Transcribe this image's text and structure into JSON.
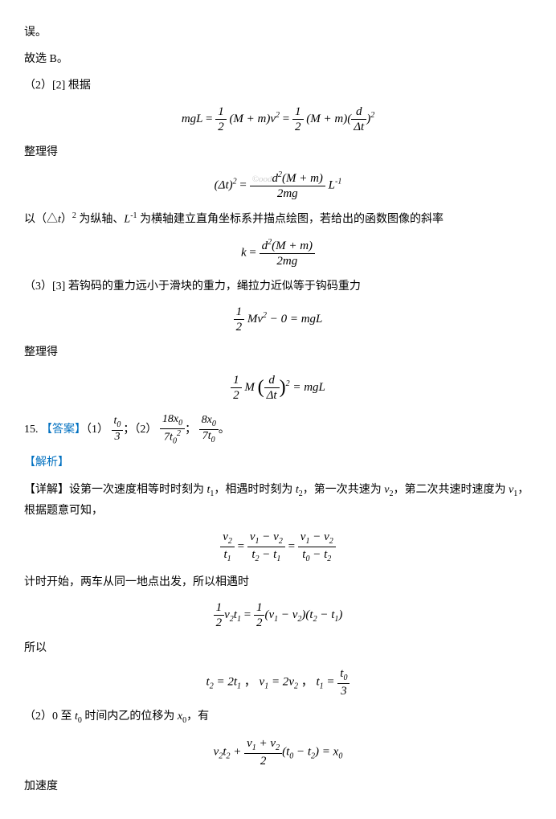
{
  "p1": "误。",
  "p2": "故选 B。",
  "p3": "（2）[2] 根据",
  "p4": "整理得",
  "p5_prefix": "以（△",
  "p5_var": "t",
  "p5_mid1": "）",
  "p5_sup": "2",
  "p5_mid2": " 为纵轴、",
  "p5_var2": "L",
  "p5_sup2": "-1",
  "p5_suffix": " 为横轴建立直角坐标系并描点绘图，若给出的函数图像的斜率",
  "p6": "（3）[3] 若钩码的重力远小于滑块的重力，绳拉力近似等于钩码重力",
  "p7": "整理得",
  "q15_num": "15. ",
  "q15_ans_label": "【答案】",
  "q15_ans_1": "（1）",
  "q15_ans_sep": "；",
  "q15_ans_2": "（2）",
  "q15_ans_end": "。",
  "analysis": "【解析】",
  "detail_label": "【详解】",
  "detail_prefix": "设第一次速度相等时时刻为 ",
  "detail_t1": "t",
  "detail_s1": "1",
  "detail_m1": "，相遇时时刻为 ",
  "detail_t2": "t",
  "detail_s2": "2",
  "detail_m2": "，第一次共速为 ",
  "detail_v2": "v",
  "detail_sv2": "2",
  "detail_m3": "，第二次共速时速度为 ",
  "detail_v1": "v",
  "detail_sv1": "1",
  "detail_suffix": "，根据题意可知，",
  "p8": "计时开始，两车从同一地点出发，所以相遇时",
  "p9": "所以",
  "p10_prefix": "（2）0 至 ",
  "p10_var": "t",
  "p10_sub": "0",
  "p10_mid": " 时间内乙的位移为 ",
  "p10_var2": "x",
  "p10_sub2": "0",
  "p10_suffix": "，有",
  "p11": "加速度",
  "f1": {
    "lhs": "mgL",
    "half_num": "1",
    "half_den": "2",
    "Mm": "(M + m)v",
    "sup2": "2",
    "Mm2": "(M + m)(",
    "d": "d",
    "dt": "Δt",
    "rparen_sup": ")",
    "sup2b": "2"
  },
  "f2": {
    "lhs_base": "(Δt)",
    "lhs_sup": "2",
    "num_d": "d",
    "num_sup": "2",
    "num_rest": "(M + m)",
    "wm": "©ood",
    "den": "2mg",
    "L": "L",
    "Lsup": "-1"
  },
  "f3": {
    "k": "k",
    "num_d": "d",
    "num_sup": "2",
    "num_rest": "(M + m)",
    "den": "2mg"
  },
  "f4": {
    "half_num": "1",
    "half_den": "2",
    "Mv": "Mv",
    "sup": "2",
    "rest": " − 0 = mgL"
  },
  "f5": {
    "half_num": "1",
    "half_den": "2",
    "M": "M",
    "d": "d",
    "dt": "Δt",
    "sup": "2",
    "rhs": " = mgL"
  },
  "ans_frac1": {
    "num": "t₀",
    "den": "3"
  },
  "ans_frac2": {
    "num": "18x₀",
    "den": "7t₀²"
  },
  "ans_frac3": {
    "num": "8x₀",
    "den": "7t₀"
  },
  "f6": {
    "n1": "v₂",
    "d1": "t₁",
    "n2": "v₁ − v₂",
    "d2": "t₂ − t₁",
    "n3": "v₁ − v₂",
    "d3": "t₀ − t₂"
  },
  "f7": {
    "half_num": "1",
    "half_den": "2",
    "lhs": "v₂t₁",
    "rhs": "(v₁ − v₂)(t₂ − t₁)"
  },
  "f8": {
    "e1": "t₂ = 2t₁",
    "e2": "v₁ = 2v₂",
    "e3_lhs": "t₁ = ",
    "e3_num": "t₀",
    "e3_den": "3",
    "sep": "  ，  "
  },
  "f9": {
    "lhs": "v₂t₂ + ",
    "num": "v₁ + v₂",
    "den": "2",
    "mid": "(t₀ − t₂) = x₀"
  }
}
